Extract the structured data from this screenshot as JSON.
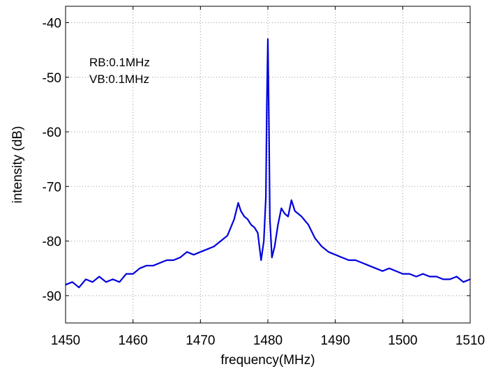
{
  "chart_data": {
    "type": "line",
    "title": "",
    "xlabel": "frequency(MHz)",
    "ylabel": "intensity (dB)",
    "xlim": [
      1450,
      1510
    ],
    "ylim": [
      -95,
      -37
    ],
    "xticks": [
      1450,
      1460,
      1470,
      1480,
      1490,
      1500,
      1510
    ],
    "yticks": [
      -40,
      -50,
      -60,
      -70,
      -80,
      -90
    ],
    "grid": true,
    "grid_style": "dotted",
    "annotations": [
      "RB:0.1MHz",
      "VB:0.1MHz"
    ],
    "series": [
      {
        "color": "#0000dd",
        "x": [
          1450,
          1451,
          1452,
          1453,
          1454,
          1455,
          1456,
          1457,
          1458,
          1459,
          1460,
          1461,
          1462,
          1463,
          1464,
          1465,
          1466,
          1467,
          1468,
          1469,
          1470,
          1471,
          1472,
          1473,
          1474,
          1475,
          1475.6,
          1476,
          1476.5,
          1477,
          1477.5,
          1478,
          1478.5,
          1479,
          1479.4,
          1479.7,
          1479.85,
          1480,
          1480.15,
          1480.3,
          1480.6,
          1481,
          1481.5,
          1482,
          1482.5,
          1483,
          1483.5,
          1484,
          1485,
          1486,
          1487,
          1488,
          1489,
          1490,
          1491,
          1492,
          1493,
          1494,
          1495,
          1496,
          1497,
          1498,
          1499,
          1500,
          1501,
          1502,
          1503,
          1504,
          1505,
          1506,
          1507,
          1508,
          1509,
          1510
        ],
        "y": [
          -88,
          -87.5,
          -88.5,
          -87,
          -87.5,
          -86.5,
          -87.5,
          -87,
          -87.5,
          -86,
          -86,
          -85,
          -84.5,
          -84.5,
          -84,
          -83.5,
          -83.5,
          -83,
          -82,
          -82.5,
          -82,
          -81.5,
          -81,
          -80,
          -79,
          -76,
          -73,
          -74.5,
          -75.5,
          -76,
          -77,
          -77.5,
          -78.5,
          -83.5,
          -80,
          -72,
          -55,
          -43,
          -58,
          -76,
          -83,
          -81,
          -77,
          -74,
          -75,
          -75.5,
          -72.5,
          -74.5,
          -75.5,
          -77,
          -79.5,
          -81,
          -82,
          -82.5,
          -83,
          -83.5,
          -83.5,
          -84,
          -84.5,
          -85,
          -85.5,
          -85,
          -85.5,
          -86,
          -86,
          -86.5,
          -86,
          -86.5,
          -86.5,
          -87,
          -87,
          -86.5,
          -87.5,
          -87
        ]
      }
    ]
  }
}
